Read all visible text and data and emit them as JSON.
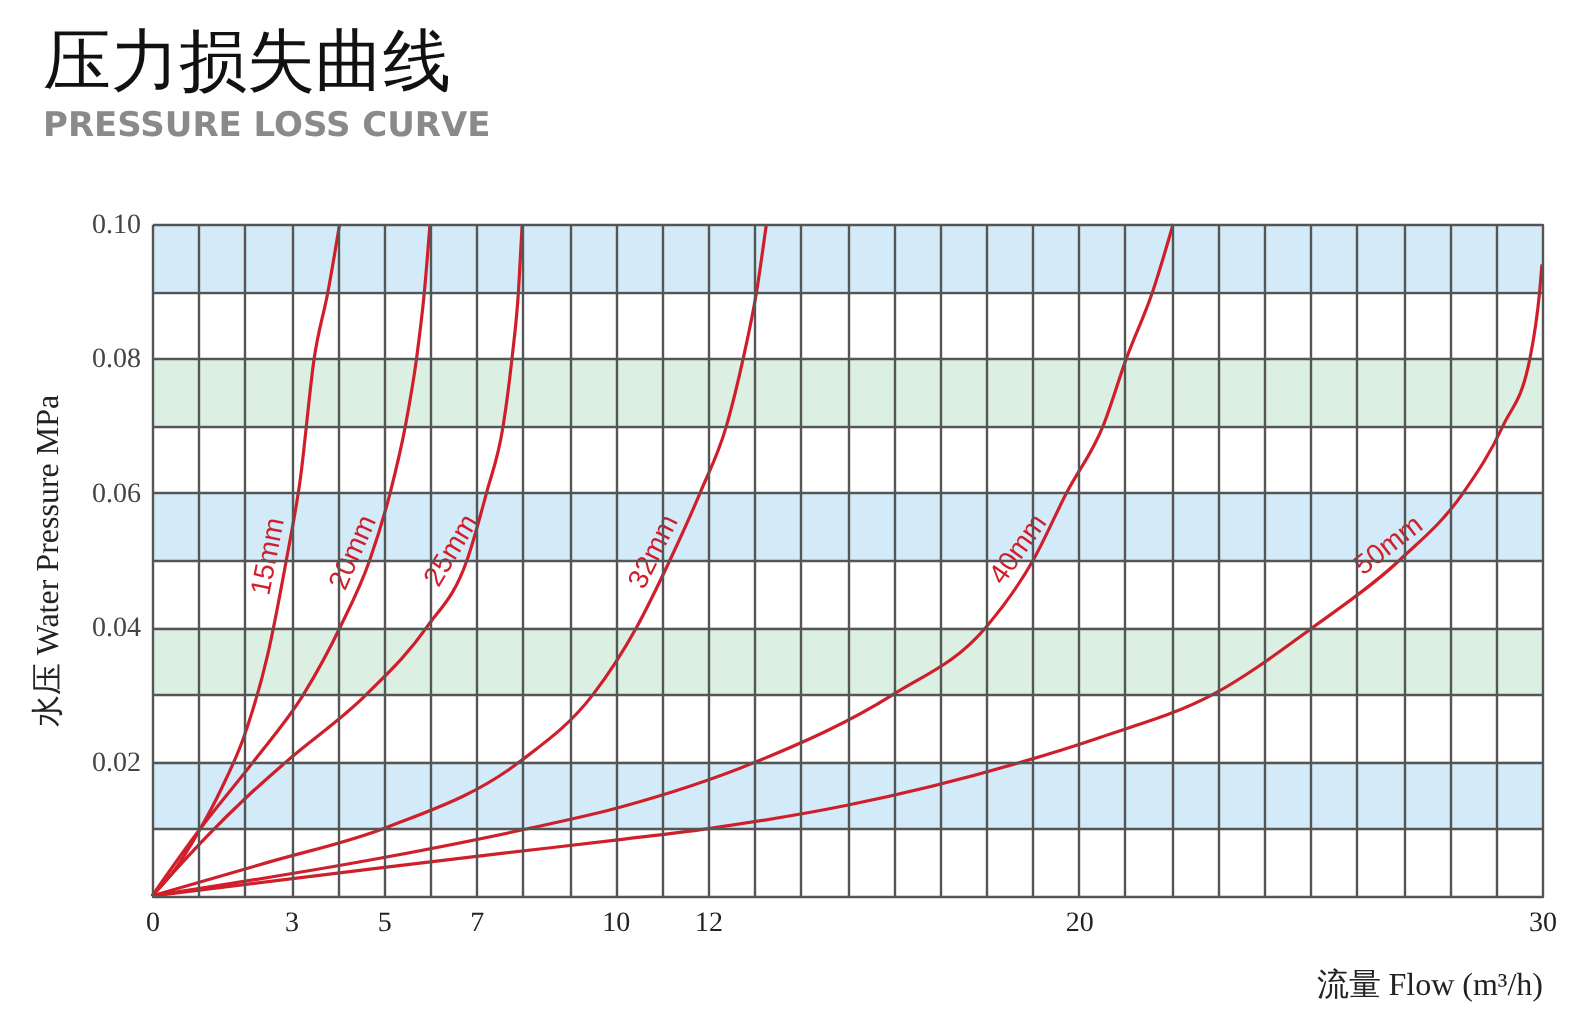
{
  "chart_data": {
    "type": "line",
    "title": "压力损失曲线",
    "subtitle": "PRESSURE LOSS CURVE",
    "xlabel": "流量 Flow (m³/h)",
    "ylabel": "水压 Water Pressure MPa",
    "xlim": [
      0,
      30
    ],
    "ylim": [
      0,
      0.1
    ],
    "xticks": [
      0,
      {
        "value": 1,
        "label": null
      },
      {
        "value": 2,
        "label": null
      },
      3,
      {
        "value": 4,
        "label": null
      },
      5,
      {
        "value": 6,
        "label": null
      },
      7,
      {
        "value": 8,
        "label": null
      },
      {
        "value": 9,
        "label": null
      },
      10,
      {
        "value": 11,
        "label": null
      },
      12,
      {
        "value": 13,
        "label": null
      },
      {
        "value": 14,
        "label": null
      },
      {
        "value": 15,
        "label": null
      },
      {
        "value": 16,
        "label": null
      },
      {
        "value": 17,
        "label": null
      },
      {
        "value": 18,
        "label": null
      },
      {
        "value": 19,
        "label": null
      },
      20,
      {
        "value": 21,
        "label": null
      },
      {
        "value": 22,
        "label": null
      },
      {
        "value": 23,
        "label": null
      },
      {
        "value": 24,
        "label": null
      },
      {
        "value": 25,
        "label": null
      },
      {
        "value": 26,
        "label": null
      },
      {
        "value": 27,
        "label": null
      },
      {
        "value": 28,
        "label": null
      },
      {
        "value": 29,
        "label": null
      },
      30
    ],
    "yticks": [
      {
        "value": 0,
        "label": null
      },
      {
        "value": 0.01,
        "label": null
      },
      0.02,
      {
        "value": 0.03,
        "label": null
      },
      0.04,
      {
        "value": 0.05,
        "label": null
      },
      0.06,
      {
        "value": 0.07,
        "label": null
      },
      0.08,
      {
        "value": 0.09,
        "label": null
      },
      {
        "value": 0.1,
        "label": "0.10"
      }
    ],
    "grid": true,
    "bands": [
      {
        "axis": "y",
        "from": 0.01,
        "to": 0.02,
        "color": "#d3ebf8"
      },
      {
        "axis": "y",
        "from": 0.03,
        "to": 0.04,
        "color": "#dbf0e3"
      },
      {
        "axis": "y",
        "from": 0.05,
        "to": 0.06,
        "color": "#d3ebf8"
      },
      {
        "axis": "y",
        "from": 0.07,
        "to": 0.08,
        "color": "#dbf0e3"
      },
      {
        "axis": "y",
        "from": 0.09,
        "to": 0.1,
        "color": "#d3ebf8"
      }
    ],
    "series": [
      {
        "name": "15mm",
        "color": "#d01f2b",
        "x": [
          0,
          0.5,
          1,
          1.5,
          2,
          2.5,
          2.9,
          3.2,
          3.5,
          3.8,
          4.05
        ],
        "values": [
          0,
          0.004,
          0.0095,
          0.016,
          0.024,
          0.036,
          0.05,
          0.062,
          0.08,
          0.09,
          0.1
        ]
      },
      {
        "name": "20mm",
        "color": "#d01f2b",
        "x": [
          0,
          1.04,
          2.19,
          3.27,
          4.06,
          4.7,
          5.14,
          5.47,
          5.71,
          5.88,
          6.0
        ],
        "values": [
          0,
          0.01,
          0.02,
          0.03,
          0.04,
          0.05,
          0.06,
          0.07,
          0.08,
          0.09,
          0.1
        ]
      },
      {
        "name": "25mm",
        "color": "#d01f2b",
        "x": [
          0,
          1.2,
          2.04,
          2.9,
          4.63,
          5.93,
          6.8,
          7.22,
          7.58,
          7.77,
          7.91,
          7.99
        ],
        "values": [
          0,
          0.009,
          0.0147,
          0.02,
          0.03,
          0.04,
          0.05,
          0.06,
          0.07,
          0.08,
          0.09,
          0.1
        ]
      },
      {
        "name": "32mm",
        "color": "#d01f2b",
        "x": [
          0,
          2.5,
          5.06,
          7.94,
          9.52,
          10.46,
          11.18,
          11.83,
          12.4,
          12.76,
          13.05,
          13.26
        ],
        "values": [
          0,
          0.005,
          0.0102,
          0.02,
          0.03,
          0.04,
          0.05,
          0.06,
          0.07,
          0.08,
          0.09,
          0.1
        ]
      },
      {
        "name": "40mm",
        "color": "#d01f2b",
        "x": [
          0,
          5.06,
          8.1,
          10.1,
          13.05,
          16.0,
          18.0,
          19.02,
          19.74,
          20.53,
          21.03,
          21.6,
          22.04
        ],
        "values": [
          0,
          0.0058,
          0.01,
          0.0132,
          0.02,
          0.03,
          0.04,
          0.05,
          0.06,
          0.07,
          0.08,
          0.09,
          0.1
        ]
      },
      {
        "name": "50mm",
        "color": "#d01f2b",
        "x": [
          0,
          5.06,
          7.5,
          10.1,
          11.97,
          15.0,
          18.8,
          20.46,
          22.9,
          25.06,
          26.93,
          28.3,
          29.16,
          29.74,
          29.95,
          30
        ],
        "values": [
          0,
          0.0043,
          0.0063,
          0.0084,
          0.01,
          0.0135,
          0.02,
          0.0236,
          0.03,
          0.04,
          0.05,
          0.06,
          0.07,
          0.08,
          0.09,
          0.094
        ]
      }
    ]
  }
}
